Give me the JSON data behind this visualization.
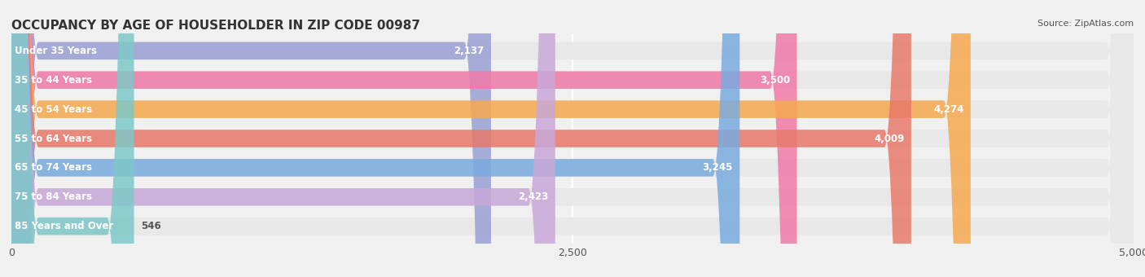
{
  "title": "OCCUPANCY BY AGE OF HOUSEHOLDER IN ZIP CODE 00987",
  "source": "Source: ZipAtlas.com",
  "categories": [
    "Under 35 Years",
    "35 to 44 Years",
    "45 to 54 Years",
    "55 to 64 Years",
    "65 to 74 Years",
    "75 to 84 Years",
    "85 Years and Over"
  ],
  "values": [
    2137,
    3500,
    4274,
    4009,
    3245,
    2423,
    546
  ],
  "bar_colors": [
    "#9b9fd4",
    "#f07aa8",
    "#f5a94e",
    "#e8796a",
    "#7aabdf",
    "#c8a8d8",
    "#7ec8c8"
  ],
  "xlim": [
    0,
    5000
  ],
  "xticks": [
    0,
    2500,
    5000
  ],
  "xtick_labels": [
    "0",
    "2,500",
    "5,000"
  ],
  "bar_height": 0.6,
  "bg_color": "#f0f0f0",
  "bar_bg_color": "#e8e8e8",
  "title_fontsize": 11,
  "label_fontsize": 8.5,
  "value_fontsize": 8.5
}
